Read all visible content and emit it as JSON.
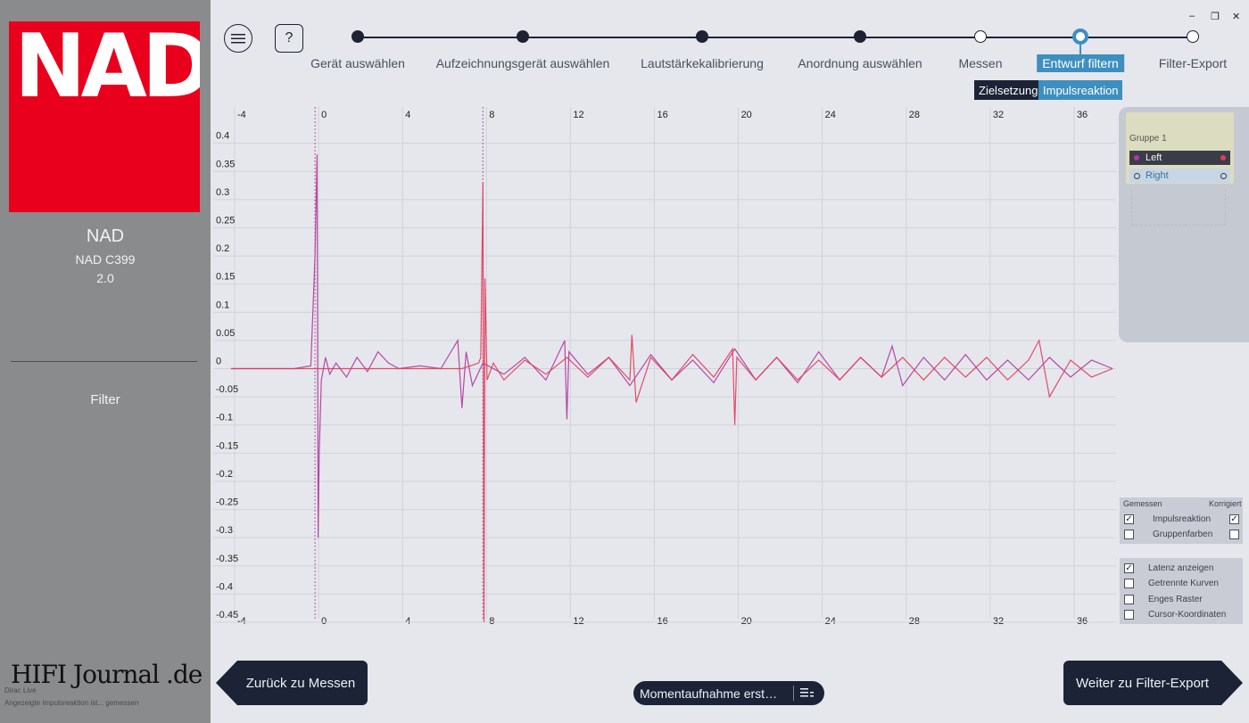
{
  "sidebar": {
    "brand_logo": "NAD",
    "device_brand": "NAD",
    "device_model": "NAD C399",
    "device_version": "2.0",
    "section": "Filter",
    "watermark_line1": "Dirac Live",
    "watermark_line2": "Angezeigte Impulsreaktion ist... gemessen",
    "watermark_logo": "HIFI Journal .de",
    "logo_color": "#e8001c"
  },
  "toolbar": {
    "menu_icon": "hamburger-menu-icon",
    "help_label": "?"
  },
  "steps": [
    {
      "label": "Gerät auswählen",
      "state": "done"
    },
    {
      "label": "Aufzeichnungsgerät auswählen",
      "state": "done"
    },
    {
      "label": "Lautstärkekalibrierung",
      "state": "done"
    },
    {
      "label": "Anordnung auswählen",
      "state": "done"
    },
    {
      "label": "Messen",
      "state": "open"
    },
    {
      "label": "Entwurf filtern",
      "state": "active"
    },
    {
      "label": "Filter-Export",
      "state": "open"
    }
  ],
  "subtabs": {
    "target": "Zielsetzung",
    "impulse": "Impulsreaktion"
  },
  "window": {
    "minimize": "–",
    "restore": "❐",
    "close": "✕"
  },
  "groups": {
    "title": "Gruppe 1",
    "channels": [
      {
        "label": "Left",
        "color": "#b2359d",
        "selected": true
      },
      {
        "label": "Right",
        "color": "#e23b5a",
        "selected": false
      }
    ]
  },
  "options": {
    "header_measured": "Gemessen",
    "header_corrected": "Korrigiert",
    "row1": {
      "label": "Impulsreaktion",
      "measured": true,
      "corrected": true
    },
    "row2": {
      "label": "Gruppenfarben",
      "measured": false,
      "corrected": false
    },
    "latency": {
      "label": "Latenz anzeigen",
      "checked": true
    },
    "separate": {
      "label": "Getrennte Kurven",
      "checked": false
    },
    "narrow": {
      "label": "Enges Raster",
      "checked": false
    },
    "cursor": {
      "label": "Cursor-Koordinaten",
      "checked": false
    }
  },
  "buttons": {
    "back": "Zurück zu Messen",
    "next": "Weiter zu Filter-Export",
    "snapshot": "Momentaufnahme erst…",
    "snapshot_icon": "list-menu-icon"
  },
  "chart_data": {
    "type": "line",
    "xlim": [
      -4,
      38
    ],
    "ylim": [
      -0.45,
      0.42
    ],
    "x_ticks": [
      -4,
      0,
      4,
      8,
      12,
      16,
      20,
      24,
      28,
      32,
      36
    ],
    "x_tick_labels": [
      "-4",
      "0",
      "4",
      "8",
      "12",
      "16",
      "20",
      "24",
      "28",
      "32",
      "36"
    ],
    "y_ticks": [
      0.4,
      0.35,
      0.3,
      0.25,
      0.2,
      0.15,
      0.1,
      0.05,
      0,
      -0.05,
      -0.1,
      -0.15,
      -0.2,
      -0.25,
      -0.3,
      -0.35,
      -0.4,
      -0.45
    ],
    "y_tick_labels": [
      "0.4",
      "0.35",
      "0.3",
      "0.25",
      "0.2",
      "0.15",
      "0.1",
      "0.05",
      "0",
      "-0.05",
      "-0.1",
      "-0.15",
      "-0.2",
      "-0.25",
      "-0.3",
      "-0.35",
      "-0.4",
      "-0.45"
    ],
    "latency_markers": [
      0,
      8
    ],
    "grid": true,
    "series": [
      {
        "name": "Left",
        "color": "#b2359d",
        "x": [
          -4,
          -1,
          -0.2,
          0,
          0.1,
          0.15,
          0.2,
          0.3,
          0.5,
          0.7,
          1,
          1.5,
          2,
          2.5,
          3,
          3.5,
          4,
          5,
          6,
          6.8,
          7,
          7.2,
          7.5,
          8,
          9,
          10,
          11,
          11.9,
          12,
          12.1,
          13,
          14,
          15,
          16,
          17,
          18,
          19,
          20,
          21,
          22,
          23,
          24,
          25,
          26,
          27,
          27.5,
          28,
          29,
          30,
          31,
          32,
          33,
          34,
          35,
          36,
          37,
          38
        ],
        "y": [
          0,
          0,
          0.005,
          0.2,
          0.38,
          -0.3,
          -0.15,
          -0.02,
          0.02,
          -0.01,
          0.01,
          -0.015,
          0.02,
          -0.005,
          0.03,
          0.01,
          0,
          0.005,
          0,
          0.05,
          -0.07,
          0.03,
          -0.03,
          0.01,
          -0.01,
          0.02,
          -0.02,
          0.05,
          -0.09,
          0.03,
          -0.01,
          0.02,
          -0.03,
          0.025,
          -0.02,
          0.015,
          -0.025,
          0.035,
          -0.02,
          0.02,
          -0.025,
          0.03,
          -0.02,
          0.02,
          -0.015,
          0.04,
          -0.03,
          0.02,
          -0.02,
          0.025,
          -0.02,
          0.015,
          -0.02,
          0.02,
          -0.015,
          0.015,
          0
        ]
      },
      {
        "name": "Right",
        "color": "#e23b5a",
        "x": [
          -4,
          7,
          7.8,
          7.9,
          8,
          8.05,
          8.1,
          8.2,
          8.5,
          9,
          10,
          11,
          12,
          13,
          14,
          15,
          15.1,
          15.3,
          16,
          17,
          18,
          19,
          19.9,
          20,
          20.1,
          21,
          22,
          23,
          24,
          25,
          26,
          27,
          28,
          29,
          30,
          31,
          32,
          33,
          34,
          34.5,
          35,
          36,
          37,
          38
        ],
        "y": [
          0,
          0,
          0.01,
          0.02,
          0.33,
          -0.45,
          0.16,
          -0.02,
          0.01,
          -0.02,
          0.015,
          -0.01,
          0.02,
          -0.015,
          0.02,
          -0.02,
          0.06,
          -0.06,
          0.02,
          -0.02,
          0.025,
          -0.015,
          0.035,
          -0.1,
          0.02,
          -0.02,
          0.02,
          -0.02,
          0.015,
          -0.02,
          0.02,
          -0.015,
          0.02,
          -0.02,
          0.02,
          -0.015,
          0.02,
          -0.02,
          0.015,
          0.05,
          -0.05,
          0.015,
          -0.015,
          0
        ]
      }
    ]
  }
}
